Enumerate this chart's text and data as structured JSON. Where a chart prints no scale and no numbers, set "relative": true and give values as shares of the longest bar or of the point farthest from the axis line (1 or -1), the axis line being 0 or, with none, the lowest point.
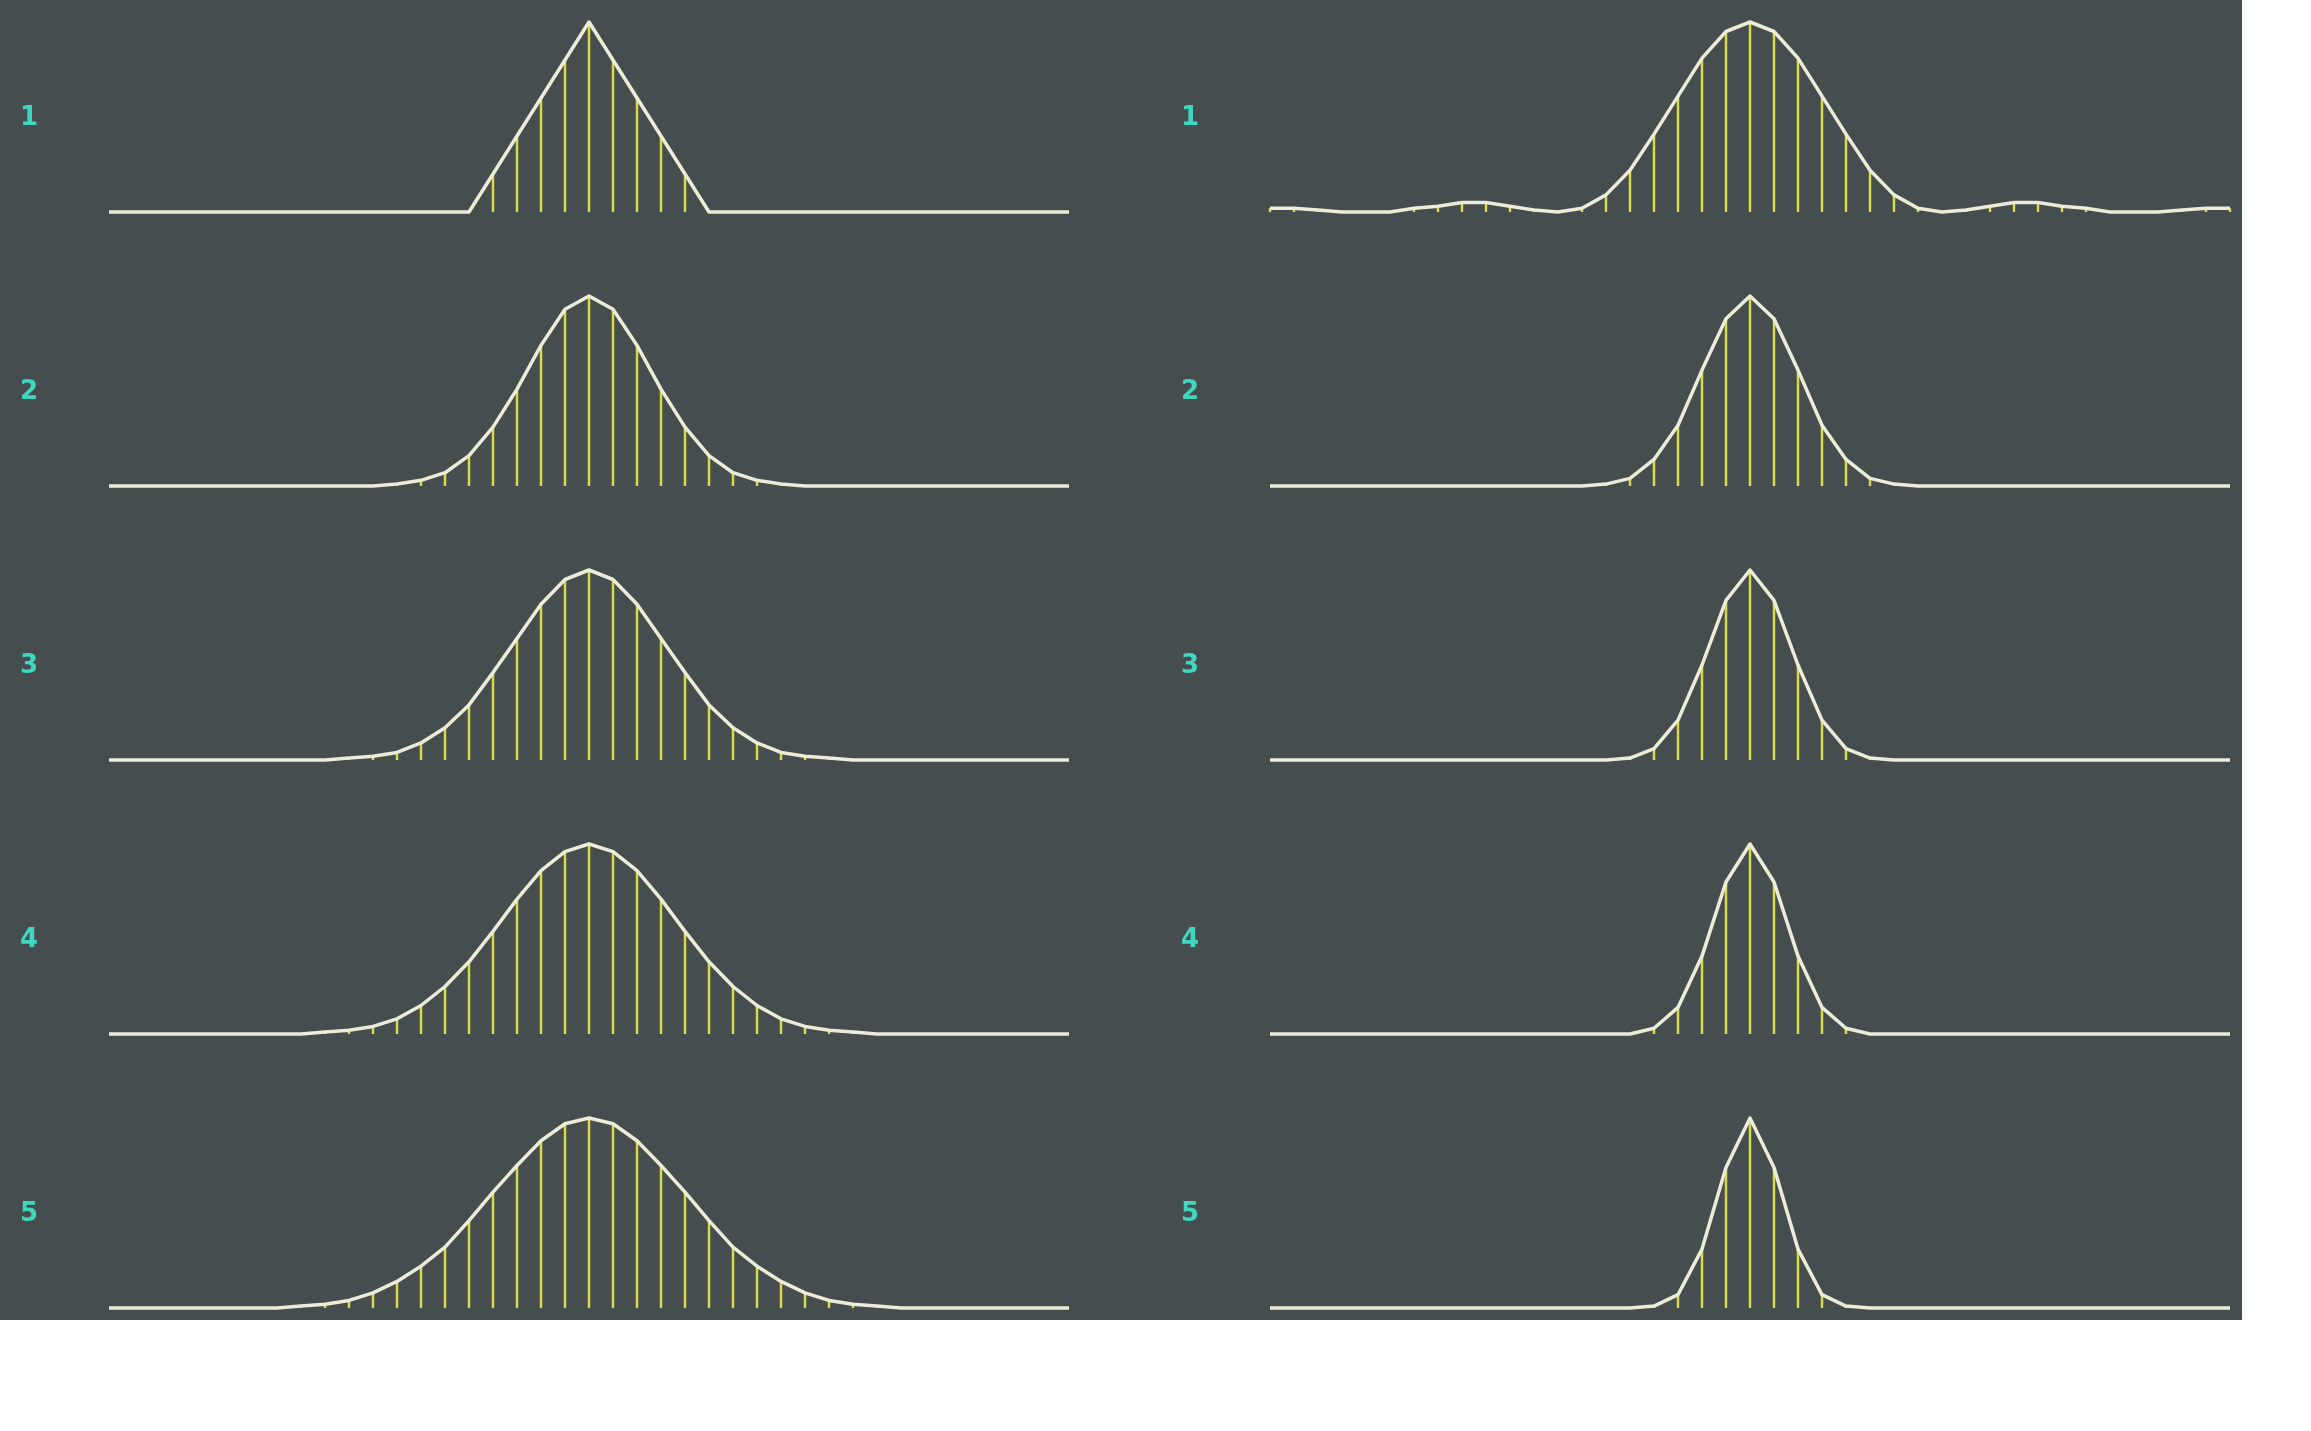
{
  "chart_data": [
    {
      "type": "line",
      "relative": true,
      "grid": "x",
      "ylabel": "1",
      "categories": [
        null,
        null,
        null,
        null,
        null,
        null,
        null,
        null,
        null,
        null,
        null,
        null,
        null,
        null,
        null,
        null,
        null,
        null,
        null,
        null,
        null,
        null,
        null,
        null,
        null,
        null,
        null,
        null,
        null,
        null,
        null,
        null,
        null,
        null,
        null,
        null,
        null,
        null,
        null,
        null,
        null
      ],
      "series": [
        {
          "color": "#ececd8",
          "values": [
            0,
            0,
            0,
            0,
            0,
            0,
            0,
            0,
            0,
            0,
            0,
            0,
            0,
            0,
            0,
            0,
            0.2,
            0.4,
            0.6,
            0.8,
            1,
            0.8,
            0.6,
            0.4,
            0.2,
            0,
            0,
            0,
            0,
            0,
            0,
            0,
            0,
            0,
            0,
            0,
            0,
            0,
            0,
            0,
            0
          ]
        }
      ]
    },
    {
      "type": "line",
      "relative": true,
      "grid": "x",
      "ylabel": "1",
      "categories": [
        null,
        null,
        null,
        null,
        null,
        null,
        null,
        null,
        null,
        null,
        null,
        null,
        null,
        null,
        null,
        null,
        null,
        null,
        null,
        null,
        null,
        null,
        null,
        null,
        null,
        null,
        null,
        null,
        null,
        null,
        null,
        null,
        null,
        null,
        null,
        null,
        null,
        null,
        null,
        null,
        null
      ],
      "series": [
        {
          "color": "#ececd8",
          "values": [
            0.02,
            0.02,
            0.01,
            0,
            0,
            0,
            0.02,
            0.03,
            0.05,
            0.05,
            0.03,
            0.01,
            0,
            0.02,
            0.09,
            0.22,
            0.41,
            0.61,
            0.81,
            0.95,
            1,
            0.95,
            0.81,
            0.61,
            0.41,
            0.22,
            0.09,
            0.02,
            0,
            0.01,
            0.03,
            0.05,
            0.05,
            0.03,
            0.02,
            0,
            0,
            0,
            0.01,
            0.02,
            0.02
          ]
        }
      ]
    },
    {
      "type": "line",
      "relative": true,
      "grid": "x",
      "ylabel": "2",
      "categories": [
        null,
        null,
        null,
        null,
        null,
        null,
        null,
        null,
        null,
        null,
        null,
        null,
        null,
        null,
        null,
        null,
        null,
        null,
        null,
        null,
        null,
        null,
        null,
        null,
        null,
        null,
        null,
        null,
        null,
        null,
        null,
        null,
        null,
        null,
        null,
        null,
        null,
        null,
        null,
        null,
        null
      ],
      "series": [
        {
          "color": "#ececd8",
          "values": [
            0,
            0,
            0,
            0,
            0,
            0,
            0,
            0,
            0,
            0,
            0,
            0,
            0.01,
            0.03,
            0.07,
            0.16,
            0.31,
            0.51,
            0.74,
            0.93,
            1,
            0.93,
            0.74,
            0.51,
            0.31,
            0.16,
            0.07,
            0.03,
            0.01,
            0,
            0,
            0,
            0,
            0,
            0,
            0,
            0,
            0,
            0,
            0,
            0
          ]
        }
      ]
    },
    {
      "type": "line",
      "relative": true,
      "grid": "x",
      "ylabel": "2",
      "categories": [
        null,
        null,
        null,
        null,
        null,
        null,
        null,
        null,
        null,
        null,
        null,
        null,
        null,
        null,
        null,
        null,
        null,
        null,
        null,
        null,
        null,
        null,
        null,
        null,
        null,
        null,
        null,
        null,
        null,
        null,
        null,
        null,
        null,
        null,
        null,
        null,
        null,
        null,
        null,
        null,
        null
      ],
      "series": [
        {
          "color": "#ececd8",
          "values": [
            0,
            0,
            0,
            0,
            0,
            0,
            0,
            0,
            0,
            0,
            0,
            0,
            0,
            0,
            0.01,
            0.04,
            0.14,
            0.32,
            0.61,
            0.88,
            1,
            0.88,
            0.61,
            0.32,
            0.14,
            0.04,
            0.01,
            0,
            0,
            0,
            0,
            0,
            0,
            0,
            0,
            0,
            0,
            0,
            0,
            0,
            0
          ]
        }
      ]
    },
    {
      "type": "line",
      "relative": true,
      "grid": "x",
      "ylabel": "3",
      "categories": [
        null,
        null,
        null,
        null,
        null,
        null,
        null,
        null,
        null,
        null,
        null,
        null,
        null,
        null,
        null,
        null,
        null,
        null,
        null,
        null,
        null,
        null,
        null,
        null,
        null,
        null,
        null,
        null,
        null,
        null,
        null,
        null,
        null,
        null,
        null,
        null,
        null,
        null,
        null,
        null,
        null
      ],
      "series": [
        {
          "color": "#ececd8",
          "values": [
            0,
            0,
            0,
            0,
            0,
            0,
            0,
            0,
            0,
            0,
            0.01,
            0.02,
            0.04,
            0.09,
            0.17,
            0.29,
            0.46,
            0.64,
            0.82,
            0.95,
            1,
            0.95,
            0.82,
            0.64,
            0.46,
            0.29,
            0.17,
            0.09,
            0.04,
            0.02,
            0.01,
            0,
            0,
            0,
            0,
            0,
            0,
            0,
            0,
            0,
            0
          ]
        }
      ]
    },
    {
      "type": "line",
      "relative": true,
      "grid": "x",
      "ylabel": "3",
      "categories": [
        null,
        null,
        null,
        null,
        null,
        null,
        null,
        null,
        null,
        null,
        null,
        null,
        null,
        null,
        null,
        null,
        null,
        null,
        null,
        null,
        null,
        null,
        null,
        null,
        null,
        null,
        null,
        null,
        null,
        null,
        null,
        null,
        null,
        null,
        null,
        null,
        null,
        null,
        null,
        null,
        null
      ],
      "series": [
        {
          "color": "#ececd8",
          "values": [
            0,
            0,
            0,
            0,
            0,
            0,
            0,
            0,
            0,
            0,
            0,
            0,
            0,
            0,
            0,
            0.01,
            0.06,
            0.21,
            0.5,
            0.84,
            1,
            0.84,
            0.5,
            0.21,
            0.06,
            0.01,
            0,
            0,
            0,
            0,
            0,
            0,
            0,
            0,
            0,
            0,
            0,
            0,
            0,
            0,
            0
          ]
        }
      ]
    },
    {
      "type": "line",
      "relative": true,
      "grid": "x",
      "ylabel": "4",
      "categories": [
        null,
        null,
        null,
        null,
        null,
        null,
        null,
        null,
        null,
        null,
        null,
        null,
        null,
        null,
        null,
        null,
        null,
        null,
        null,
        null,
        null,
        null,
        null,
        null,
        null,
        null,
        null,
        null,
        null,
        null,
        null,
        null,
        null,
        null,
        null,
        null,
        null,
        null,
        null,
        null,
        null
      ],
      "series": [
        {
          "color": "#ececd8",
          "values": [
            0,
            0,
            0,
            0,
            0,
            0,
            0,
            0,
            0,
            0.01,
            0.02,
            0.04,
            0.08,
            0.15,
            0.25,
            0.38,
            0.54,
            0.71,
            0.86,
            0.96,
            1,
            0.96,
            0.86,
            0.71,
            0.54,
            0.38,
            0.25,
            0.15,
            0.08,
            0.04,
            0.02,
            0.01,
            0,
            0,
            0,
            0,
            0,
            0,
            0,
            0,
            0
          ]
        }
      ]
    },
    {
      "type": "line",
      "relative": true,
      "grid": "x",
      "ylabel": "4",
      "categories": [
        null,
        null,
        null,
        null,
        null,
        null,
        null,
        null,
        null,
        null,
        null,
        null,
        null,
        null,
        null,
        null,
        null,
        null,
        null,
        null,
        null,
        null,
        null,
        null,
        null,
        null,
        null,
        null,
        null,
        null,
        null,
        null,
        null,
        null,
        null,
        null,
        null,
        null,
        null,
        null,
        null
      ],
      "series": [
        {
          "color": "#ececd8",
          "values": [
            0,
            0,
            0,
            0,
            0,
            0,
            0,
            0,
            0,
            0,
            0,
            0,
            0,
            0,
            0,
            0,
            0.03,
            0.14,
            0.41,
            0.8,
            1,
            0.8,
            0.41,
            0.14,
            0.03,
            0,
            0,
            0,
            0,
            0,
            0,
            0,
            0,
            0,
            0,
            0,
            0,
            0,
            0,
            0,
            0
          ]
        }
      ]
    },
    {
      "type": "line",
      "relative": true,
      "grid": "x",
      "ylabel": "5",
      "categories": [
        null,
        null,
        null,
        null,
        null,
        null,
        null,
        null,
        null,
        null,
        null,
        null,
        null,
        null,
        null,
        null,
        null,
        null,
        null,
        null,
        null,
        null,
        null,
        null,
        null,
        null,
        null,
        null,
        null,
        null,
        null,
        null,
        null,
        null,
        null,
        null,
        null,
        null,
        null,
        null,
        null
      ],
      "series": [
        {
          "color": "#ececd8",
          "values": [
            0,
            0,
            0,
            0,
            0,
            0,
            0,
            0,
            0.01,
            0.02,
            0.04,
            0.08,
            0.14,
            0.22,
            0.32,
            0.46,
            0.61,
            0.75,
            0.88,
            0.97,
            1,
            0.97,
            0.88,
            0.75,
            0.61,
            0.46,
            0.32,
            0.22,
            0.14,
            0.08,
            0.04,
            0.02,
            0.01,
            0,
            0,
            0,
            0,
            0,
            0,
            0,
            0
          ]
        }
      ]
    },
    {
      "type": "line",
      "relative": true,
      "grid": "x",
      "ylabel": "5",
      "categories": [
        null,
        null,
        null,
        null,
        null,
        null,
        null,
        null,
        null,
        null,
        null,
        null,
        null,
        null,
        null,
        null,
        null,
        null,
        null,
        null,
        null,
        null,
        null,
        null,
        null,
        null,
        null,
        null,
        null,
        null,
        null,
        null,
        null,
        null,
        null,
        null,
        null,
        null,
        null,
        null,
        null
      ],
      "series": [
        {
          "color": "#ececd8",
          "values": [
            0,
            0,
            0,
            0,
            0,
            0,
            0,
            0,
            0,
            0,
            0,
            0,
            0,
            0,
            0,
            0,
            0.01,
            0.07,
            0.31,
            0.74,
            1,
            0.74,
            0.31,
            0.07,
            0.01,
            0,
            0,
            0,
            0,
            0,
            0,
            0,
            0,
            0,
            0,
            0,
            0,
            0,
            0,
            0,
            0
          ]
        }
      ]
    }
  ]
}
